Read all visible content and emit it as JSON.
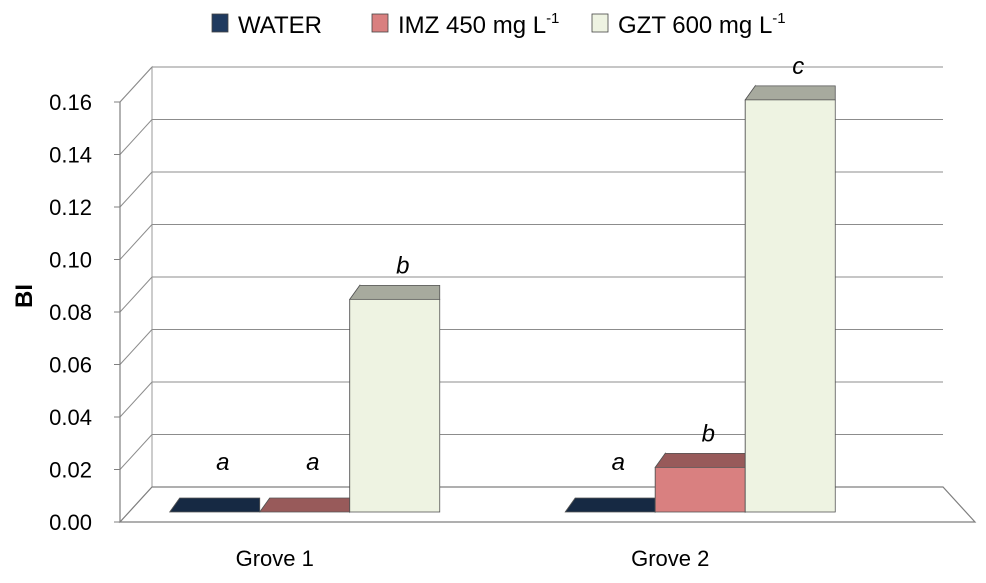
{
  "chart_data": {
    "type": "bar",
    "categories": [
      "Grove 1",
      "Grove 2"
    ],
    "series": [
      {
        "name": "WATER",
        "unit": "",
        "color": "#1f3a5f",
        "values": [
          0.0,
          0.0
        ],
        "sig": [
          "a",
          "a"
        ]
      },
      {
        "name": "IMZ 450 mg L",
        "unit": "-1",
        "color": "#d98080",
        "values": [
          0.0,
          0.017
        ],
        "sig": [
          "a",
          "b"
        ]
      },
      {
        "name": "GZT 600 mg L",
        "unit": "-1",
        "color": "#eef3e2",
        "values": [
          0.081,
          0.157
        ],
        "sig": [
          "b",
          "c"
        ]
      }
    ],
    "ylabel": "BI",
    "xlabel": "",
    "ylim": [
      0,
      0.16
    ],
    "yticks": [
      "0.00",
      "0.02",
      "0.04",
      "0.06",
      "0.08",
      "0.10",
      "0.12",
      "0.14",
      "0.16"
    ],
    "grid": true,
    "legend": "top"
  }
}
